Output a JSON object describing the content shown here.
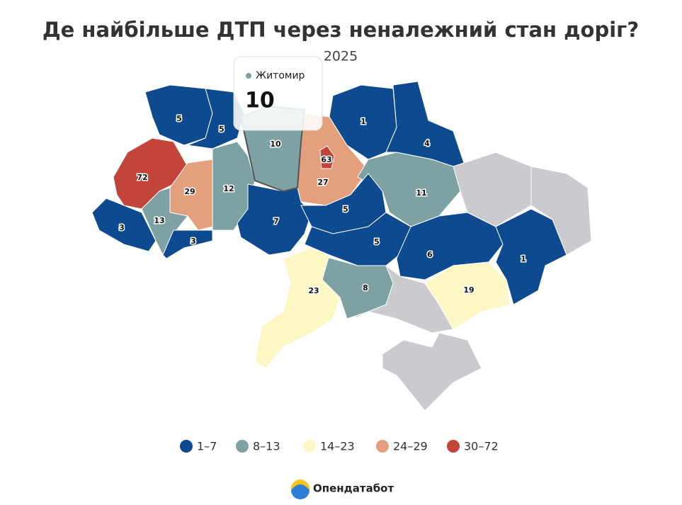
{
  "chart_data": {
    "type": "choropleth",
    "title": "Де найбільше ДТП через неналежний стан доріг?",
    "subtitle": "2025",
    "values": [
      5,
      5,
      10,
      27,
      63,
      1,
      4,
      11,
      72,
      29,
      12,
      3,
      13,
      3,
      7,
      5,
      5,
      6,
      1,
      19,
      8,
      23
    ],
    "legend": [
      {
        "label": "1–7",
        "min": 1,
        "max": 7,
        "color": "#0d4a8f"
      },
      {
        "label": "8–13",
        "min": 8,
        "max": 13,
        "color": "#7ea2a3"
      },
      {
        "label": "14–23",
        "min": 14,
        "max": 23,
        "color": "#fcf7c4"
      },
      {
        "label": "24–29",
        "min": 24,
        "max": 29,
        "color": "#e4a07c"
      },
      {
        "label": "30–72",
        "min": 30,
        "max": 72,
        "color": "#c3443a"
      }
    ],
    "tooltip": {
      "name": "Житомир",
      "value": 10,
      "color": "#7ea2a3"
    },
    "brand": "Опендатабот"
  }
}
